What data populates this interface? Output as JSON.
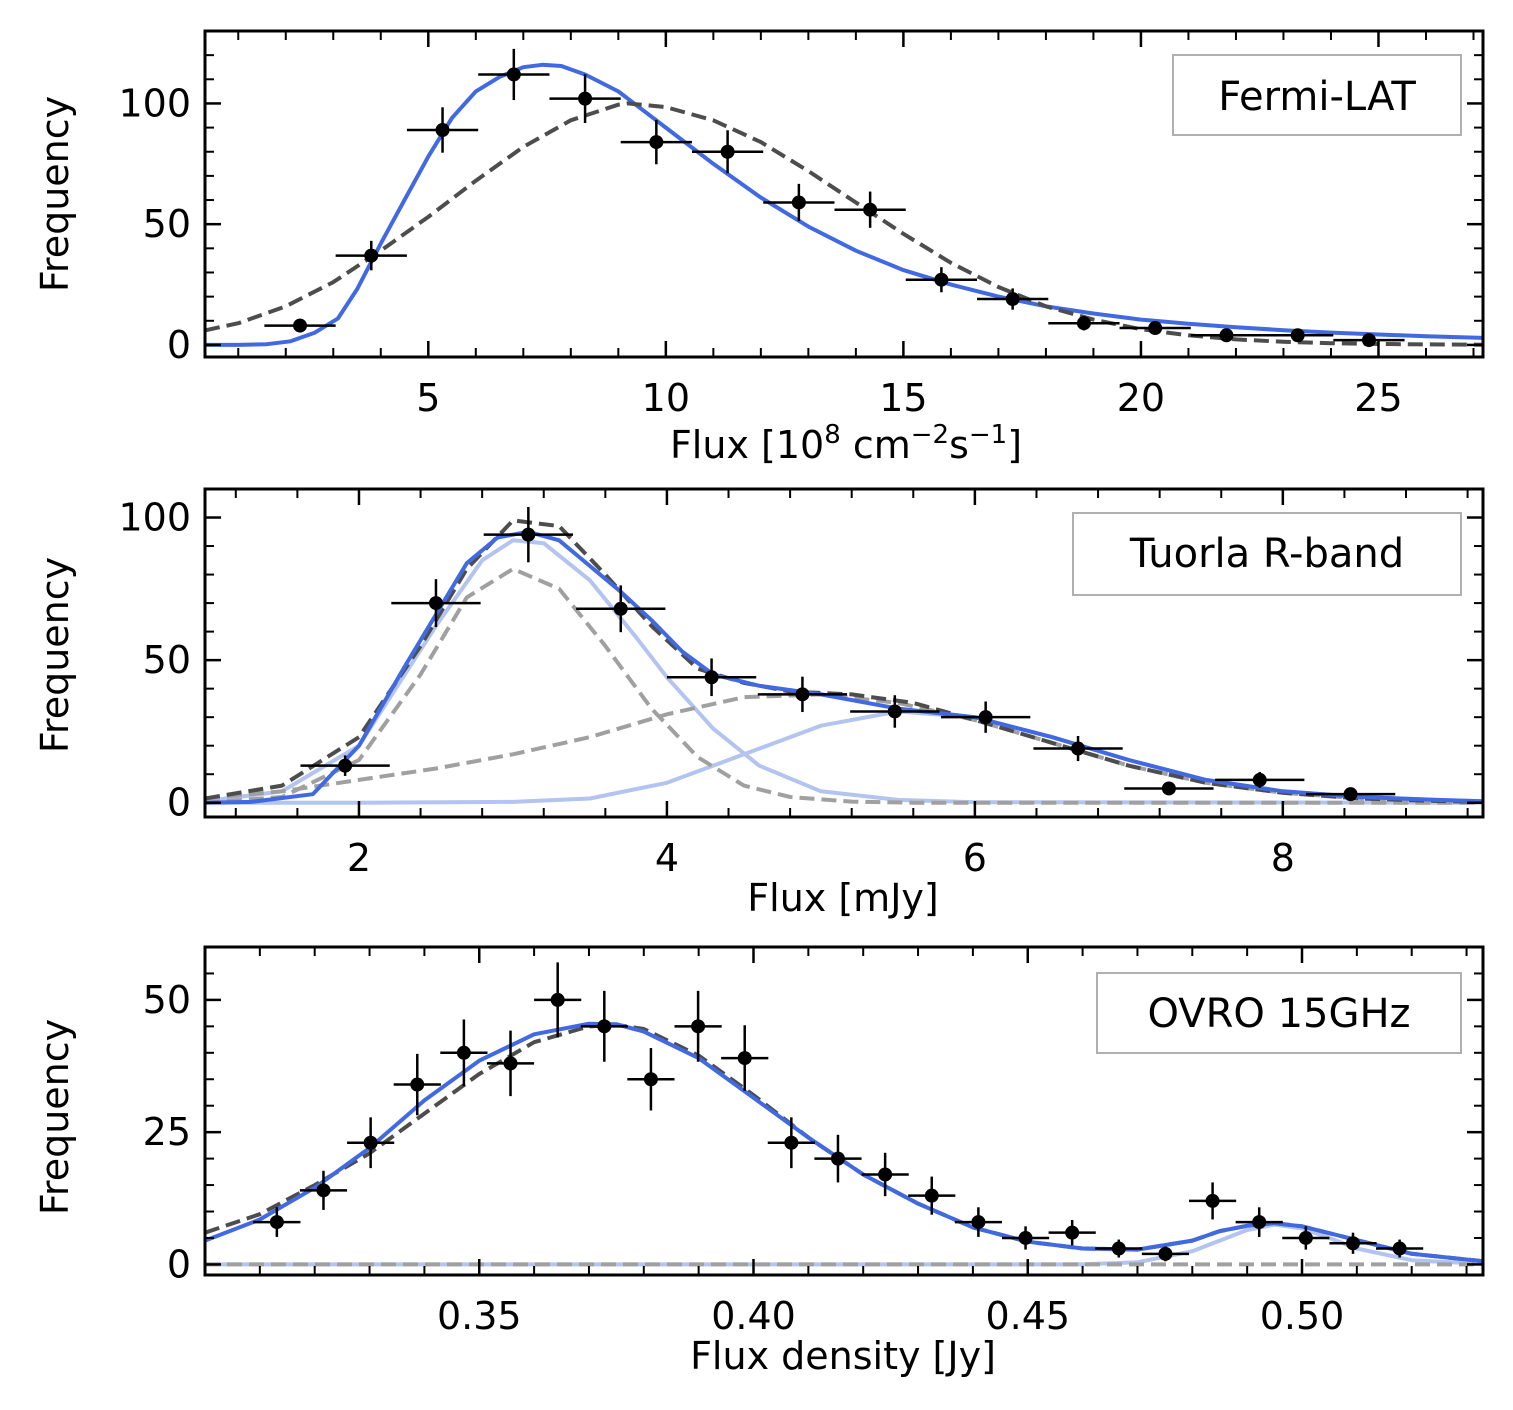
{
  "colors": {
    "fit_blue": "#4169e1",
    "fit_blue_light": "#b3c4f0",
    "model_dark": "#4d4d4d",
    "component_gray": "#a0a0a0",
    "points": "#000000",
    "legend_edge": "#b0b0b0"
  },
  "chart_data": [
    {
      "type": "scatter",
      "title": "",
      "panel_label": "Fermi-LAT",
      "xlabel": "Flux [10",
      "xlabel_sup1": "8",
      "xlabel_mid": " cm",
      "xlabel_sup2": "−2",
      "xlabel_mid2": "s",
      "xlabel_sup3": "−1",
      "xlabel_end": "]",
      "ylabel": "Frequency",
      "xlim": [
        0.3,
        27.2
      ],
      "ylim": [
        -5,
        130
      ],
      "xticks": [
        5,
        10,
        15,
        20,
        25
      ],
      "xtick_labels": [
        "5",
        "10",
        "15",
        "20",
        "25"
      ],
      "yticks": [
        0,
        50,
        100
      ],
      "ytick_labels": [
        "0",
        "50",
        "100"
      ],
      "xminor": 1,
      "yminor": 10,
      "points": {
        "x": [
          2.3,
          3.8,
          5.3,
          6.8,
          8.3,
          9.8,
          11.3,
          12.8,
          14.3,
          15.8,
          17.3,
          18.8,
          20.3,
          21.8,
          23.3,
          24.8
        ],
        "y": [
          8,
          37,
          89,
          112,
          102,
          84,
          80,
          59,
          56,
          27,
          19,
          9,
          7,
          4,
          4,
          2
        ],
        "xerr": 0.75,
        "yerr": [
          2.8,
          6.1,
          9.4,
          10.6,
          10.1,
          9.2,
          8.9,
          7.7,
          7.5,
          5.2,
          4.4,
          3.0,
          2.6,
          2.0,
          2.0,
          1.4
        ]
      },
      "curves": [
        {
          "name": "lognormal fit",
          "style": "solid",
          "color_key": "fit_blue",
          "x": [
            0.3,
            1.0,
            1.6,
            2.1,
            2.6,
            3.1,
            3.5,
            4.0,
            4.5,
            5.0,
            5.5,
            6.0,
            6.5,
            7.0,
            7.4,
            7.8,
            8.3,
            9.0,
            10.0,
            11.0,
            12.0,
            13.0,
            14.0,
            15.0,
            16.0,
            17.0,
            18.0,
            19.0,
            20.0,
            21.0,
            22.0,
            23.0,
            24.0,
            25.0,
            26.0,
            27.2
          ],
          "y": [
            0,
            0,
            0.3,
            1.5,
            5,
            11,
            23,
            42,
            60,
            78,
            94,
            105,
            111,
            115,
            116,
            115.5,
            112,
            105,
            90,
            75,
            61,
            49,
            39,
            31,
            25,
            20,
            16,
            13,
            10.5,
            8.8,
            7.3,
            6.1,
            5.1,
            4.3,
            3.6,
            2.9
          ]
        },
        {
          "name": "gaussian fit",
          "style": "dashed",
          "color_key": "model_dark",
          "x": [
            0.3,
            1.0,
            2.0,
            3.0,
            4.0,
            5.0,
            6.0,
            7.0,
            8.0,
            9.0,
            9.2,
            10.0,
            11.0,
            12.0,
            13.0,
            14.0,
            15.0,
            16.0,
            17.0,
            18.0,
            19.0,
            20.0,
            21.0,
            22.0,
            23.0,
            24.0,
            25.0,
            26.0,
            27.2
          ],
          "y": [
            6,
            9,
            16,
            26,
            39,
            53,
            68,
            82,
            93,
            99.5,
            100,
            98.5,
            93,
            84,
            72,
            59,
            46,
            34,
            24,
            16,
            10.5,
            6.5,
            4,
            2.3,
            1.3,
            0.7,
            0.4,
            0.2,
            0.1
          ]
        }
      ]
    },
    {
      "type": "scatter",
      "title": "",
      "panel_label": "Tuorla R-band",
      "xlabel": "Flux [mJy]",
      "ylabel": "Frequency",
      "xlim": [
        1.0,
        9.3
      ],
      "ylim": [
        -5,
        110
      ],
      "xticks": [
        2,
        4,
        6,
        8
      ],
      "xtick_labels": [
        "2",
        "4",
        "6",
        "8"
      ],
      "yticks": [
        0,
        50,
        100
      ],
      "ytick_labels": [
        "0",
        "50",
        "100"
      ],
      "xminor": 0.4,
      "yminor": 10,
      "points": {
        "x": [
          1.91,
          2.5,
          3.1,
          3.7,
          4.29,
          4.88,
          5.48,
          6.07,
          6.67,
          7.26,
          7.85,
          8.44
        ],
        "y": [
          13,
          70,
          94,
          68,
          44,
          38,
          32,
          30,
          19,
          5,
          8,
          3
        ],
        "xerr": 0.29,
        "yerr": [
          3.6,
          8.4,
          9.7,
          8.2,
          6.6,
          6.2,
          5.7,
          5.5,
          4.4,
          2.2,
          2.8,
          1.7
        ]
      },
      "curves": [
        {
          "name": "second component (light)",
          "style": "solid",
          "color_key": "fit_blue_light",
          "x": [
            1.0,
            2.0,
            3.0,
            3.5,
            4.0,
            4.5,
            5.0,
            5.5,
            6.0,
            6.5,
            7.0,
            7.5,
            8.0,
            8.5,
            9.0,
            9.3
          ],
          "y": [
            0,
            0,
            0.3,
            1.5,
            7,
            17,
            27,
            32,
            30,
            23,
            15,
            8,
            4,
            2,
            1,
            0.5
          ]
        },
        {
          "name": "first component (light)",
          "style": "solid",
          "color_key": "fit_blue_light",
          "x": [
            1.0,
            1.5,
            2.0,
            2.5,
            2.8,
            3.0,
            3.2,
            3.5,
            3.8,
            4.0,
            4.3,
            4.6,
            5.0,
            5.5,
            6.0,
            9.3
          ],
          "y": [
            0.5,
            4,
            20,
            62,
            85,
            92,
            91,
            78,
            58,
            44,
            26,
            13,
            4,
            1,
            0.2,
            0
          ]
        },
        {
          "name": "narrow gaussian component",
          "style": "dashed",
          "color_key": "component_gray",
          "x": [
            1.0,
            1.5,
            2.0,
            2.4,
            2.7,
            3.0,
            3.3,
            3.6,
            3.9,
            4.2,
            4.5,
            4.8,
            5.2,
            5.6,
            6.0,
            9.3
          ],
          "y": [
            0,
            2,
            15,
            45,
            72,
            82,
            75,
            55,
            33,
            16,
            6,
            2,
            0.4,
            0,
            0,
            0
          ]
        },
        {
          "name": "broad gaussian component",
          "style": "dashed",
          "color_key": "component_gray",
          "x": [
            1.0,
            1.5,
            2.0,
            2.5,
            3.0,
            3.5,
            4.0,
            4.5,
            5.0,
            5.5,
            6.0,
            6.5,
            7.0,
            7.5,
            8.0,
            8.5,
            9.0,
            9.3
          ],
          "y": [
            1.5,
            4,
            8,
            12,
            17,
            23,
            31,
            37,
            38,
            35,
            29,
            21,
            13,
            7,
            3.5,
            1.5,
            0.6,
            0.3
          ]
        },
        {
          "name": "total two-gaussian model",
          "style": "dashed",
          "color_key": "model_dark",
          "x": [
            1.0,
            1.5,
            2.0,
            2.4,
            2.7,
            3.0,
            3.3,
            3.6,
            3.9,
            4.2,
            4.5,
            4.8,
            5.2,
            5.6,
            6.0,
            6.5,
            7.0,
            7.5,
            8.0,
            8.5,
            9.0,
            9.3
          ],
          "y": [
            1.5,
            6,
            23,
            55,
            82,
            99,
            97,
            80,
            62,
            47,
            42,
            39,
            38,
            35,
            29,
            21,
            13,
            7,
            3.5,
            1.5,
            0.6,
            0.3
          ]
        },
        {
          "name": "total fit",
          "style": "solid",
          "color_key": "fit_blue",
          "x": [
            1.0,
            1.3,
            1.7,
            2.0,
            2.3,
            2.5,
            2.7,
            2.9,
            3.1,
            3.3,
            3.5,
            3.7,
            3.9,
            4.1,
            4.3,
            4.6,
            5.0,
            5.5,
            6.0,
            6.5,
            7.0,
            7.5,
            8.0,
            8.5,
            9.0,
            9.3
          ],
          "y": [
            0,
            0.3,
            3,
            20,
            48,
            66,
            84,
            93,
            95,
            92,
            83,
            74,
            64,
            53,
            45,
            41,
            38,
            33,
            30,
            23,
            15,
            8,
            4,
            2,
            1,
            0.5
          ]
        }
      ]
    },
    {
      "type": "scatter",
      "title": "",
      "panel_label": "OVRO 15GHz",
      "xlabel": "Flux density [Jy]",
      "ylabel": "Frequency",
      "xlim": [
        0.3,
        0.533
      ],
      "ylim": [
        -2,
        60
      ],
      "xticks": [
        0.35,
        0.4,
        0.45,
        0.5
      ],
      "xtick_labels": [
        "0.35",
        "0.40",
        "0.45",
        "0.50"
      ],
      "yticks": [
        0,
        25,
        50
      ],
      "ytick_labels": [
        "0",
        "25",
        "50"
      ],
      "xminor": 0.01,
      "yminor": 5,
      "points": {
        "x": [
          0.3131,
          0.3216,
          0.3302,
          0.3387,
          0.3472,
          0.3557,
          0.3643,
          0.3728,
          0.3813,
          0.3899,
          0.3984,
          0.4069,
          0.4154,
          0.424,
          0.4325,
          0.441,
          0.4496,
          0.4581,
          0.4666,
          0.4751,
          0.4837,
          0.4922,
          0.5007,
          0.5093,
          0.5178
        ],
        "y": [
          8,
          14,
          23,
          34,
          40,
          38,
          50,
          45,
          35,
          45,
          39,
          23,
          20,
          17,
          13,
          8,
          5,
          6,
          3,
          2,
          12,
          8,
          5,
          4,
          3
        ],
        "xerr": 0.0043,
        "yerr": [
          2.8,
          3.7,
          4.8,
          5.8,
          6.3,
          6.2,
          7.1,
          6.7,
          5.9,
          6.7,
          6.2,
          4.8,
          4.5,
          4.1,
          3.6,
          2.8,
          2.2,
          2.4,
          1.7,
          1.4,
          3.5,
          2.8,
          2.2,
          2.0,
          1.7
        ]
      },
      "curves": [
        {
          "name": "second component (light)",
          "style": "solid",
          "color_key": "fit_blue_light",
          "x": [
            0.3,
            0.46,
            0.47,
            0.48,
            0.485,
            0.49,
            0.495,
            0.5,
            0.505,
            0.51,
            0.52,
            0.533
          ],
          "y": [
            0,
            0,
            0.4,
            2.5,
            4.5,
            6.5,
            7.5,
            6.8,
            5,
            3,
            0.8,
            0.1
          ]
        },
        {
          "name": "component baselines",
          "style": "dashed",
          "color_key": "component_gray",
          "x": [
            0.3,
            0.533
          ],
          "y": [
            0,
            0
          ]
        },
        {
          "name": "total gaussian model",
          "style": "dashed",
          "color_key": "model_dark",
          "x": [
            0.3,
            0.31,
            0.32,
            0.33,
            0.34,
            0.35,
            0.36,
            0.37,
            0.375,
            0.38,
            0.39,
            0.4,
            0.41,
            0.42,
            0.43,
            0.44,
            0.45,
            0.46,
            0.47,
            0.48,
            0.485,
            0.49,
            0.495,
            0.5,
            0.51,
            0.52,
            0.533
          ],
          "y": [
            6,
            9.5,
            15,
            21,
            28.5,
            36,
            42,
            45,
            45.3,
            44.5,
            39.5,
            32,
            24,
            17,
            11.5,
            7,
            4.3,
            3,
            2.8,
            4.5,
            6.3,
            7.3,
            7.8,
            7.2,
            4.6,
            2,
            0.6
          ]
        },
        {
          "name": "total fit",
          "style": "solid",
          "color_key": "fit_blue",
          "x": [
            0.3,
            0.31,
            0.32,
            0.33,
            0.34,
            0.35,
            0.36,
            0.37,
            0.375,
            0.38,
            0.39,
            0.4,
            0.41,
            0.42,
            0.43,
            0.44,
            0.45,
            0.46,
            0.47,
            0.48,
            0.485,
            0.49,
            0.495,
            0.5,
            0.51,
            0.52,
            0.533
          ],
          "y": [
            4.5,
            8.5,
            14.5,
            22,
            31,
            38.5,
            43.5,
            45.5,
            45.4,
            44,
            39,
            31.5,
            24,
            17,
            11.5,
            7,
            4.3,
            3,
            2.8,
            4.5,
            6.3,
            7.3,
            7.8,
            7.2,
            4.6,
            2,
            0.6
          ]
        }
      ]
    }
  ]
}
